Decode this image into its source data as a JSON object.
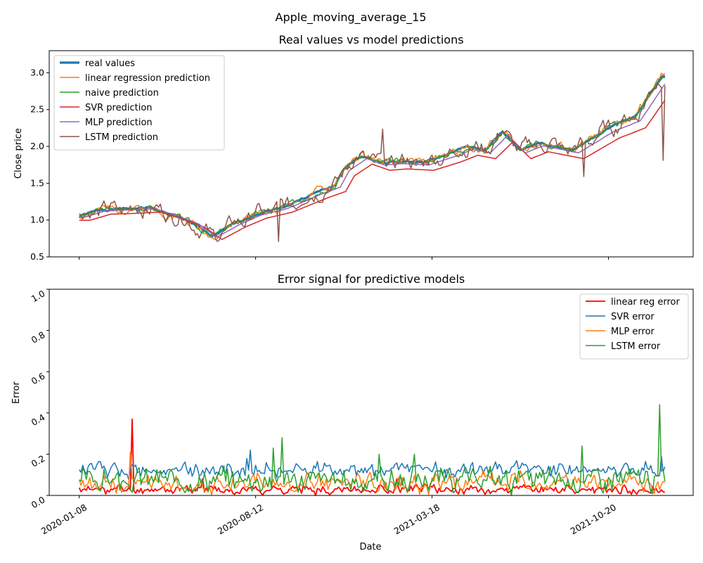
{
  "suptitle": "Apple_moving_average_15",
  "chart_data": [
    {
      "type": "line",
      "title": "Real values vs model predictions",
      "xlabel": "",
      "ylabel": "Close price",
      "ylim": [
        0.5,
        3.3
      ],
      "yticks": [
        0.5,
        1.0,
        1.5,
        2.0,
        2.5,
        3.0
      ],
      "ytick_labels": [
        "0.5",
        "1.0",
        "1.5",
        "2.0",
        "2.5",
        "3.0"
      ],
      "xlim": [
        -17,
        348
      ],
      "xticks": [
        0,
        100,
        200,
        300
      ],
      "xtick_labels": [
        "",
        "",
        "",
        ""
      ],
      "grid": false,
      "legend_position": "upper-left",
      "x_count": 333,
      "base_curve": [
        [
          0,
          1.05
        ],
        [
          12,
          1.14
        ],
        [
          25,
          1.15
        ],
        [
          40,
          1.17
        ],
        [
          55,
          1.05
        ],
        [
          65,
          0.95
        ],
        [
          75,
          0.77
        ],
        [
          88,
          0.95
        ],
        [
          100,
          1.08
        ],
        [
          115,
          1.17
        ],
        [
          135,
          1.38
        ],
        [
          145,
          1.47
        ],
        [
          150,
          1.7
        ],
        [
          160,
          1.87
        ],
        [
          170,
          1.78
        ],
        [
          180,
          1.8
        ],
        [
          195,
          1.78
        ],
        [
          210,
          1.9
        ],
        [
          220,
          2.0
        ],
        [
          230,
          1.95
        ],
        [
          240,
          2.2
        ],
        [
          250,
          1.95
        ],
        [
          260,
          2.05
        ],
        [
          270,
          2.0
        ],
        [
          280,
          1.95
        ],
        [
          300,
          2.25
        ],
        [
          315,
          2.4
        ],
        [
          330,
          2.95
        ],
        [
          333,
          2.98
        ]
      ],
      "series": [
        {
          "name": "real values",
          "color": "#1f77b4",
          "width": 3.2,
          "kind": "real",
          "offset": 0,
          "noise": 0.012,
          "seed": 1
        },
        {
          "name": "linear regression prediction",
          "color": "#ff7f0e",
          "width": 1.5,
          "kind": "real",
          "offset": 0,
          "noise": 0.045,
          "seed": 2
        },
        {
          "name": "naive prediction",
          "color": "#2ca02c",
          "width": 1.5,
          "kind": "real",
          "offset": 0,
          "noise": 0.03,
          "seed": 3
        },
        {
          "name": "SVR prediction",
          "color": "#d62728",
          "width": 1.5,
          "kind": "svr",
          "offset": -0.05,
          "noise": 0,
          "seed": 4
        },
        {
          "name": "MLP prediction",
          "color": "#9467bd",
          "width": 1.5,
          "kind": "mlp",
          "offset": -0.04,
          "noise": 0.005,
          "seed": 5
        },
        {
          "name": "LSTM prediction",
          "color": "#8c564b",
          "width": 1.5,
          "kind": "lstm",
          "offset": 0,
          "noise": 0.05,
          "seed": 6
        }
      ]
    },
    {
      "type": "line",
      "title": "Error signal for predictive models",
      "xlabel": "Date",
      "ylabel": "Error",
      "ylim": [
        0.0,
        1.0
      ],
      "yticks": [
        0.0,
        0.2,
        0.4,
        0.6,
        0.8,
        1.0
      ],
      "ytick_labels": [
        "0.0",
        "0.2",
        "0.4",
        "0.6",
        "0.8",
        "1.0"
      ],
      "xlim": [
        -17,
        348
      ],
      "xticks": [
        0,
        100,
        200,
        300
      ],
      "xtick_labels": [
        "2020-01-08",
        "2020-08-12",
        "2021-03-18",
        "2021-10-20"
      ],
      "grid": false,
      "legend_position": "upper-right",
      "x_count": 333,
      "series": [
        {
          "name": "linear reg error",
          "color": "#ff0000",
          "width": 1.8,
          "base": 0.02,
          "amp": 0.03,
          "seed": 11,
          "spikes": [
            [
              30,
              0.37
            ],
            [
              70,
              0.08
            ],
            [
              180,
              0.08
            ]
          ]
        },
        {
          "name": "SVR error",
          "color": "#1f77b4",
          "width": 1.5,
          "base": 0.11,
          "amp": 0.05,
          "seed": 12,
          "spikes": [
            [
              95,
              0.18
            ],
            [
              97,
              0.22
            ],
            [
              330,
              0.19
            ]
          ]
        },
        {
          "name": "MLP error",
          "color": "#ff7f0e",
          "width": 1.5,
          "base": 0.04,
          "amp": 0.06,
          "seed": 13,
          "spikes": [
            [
              29,
              0.21
            ],
            [
              99,
              0.1
            ],
            [
              250,
              0.12
            ]
          ]
        },
        {
          "name": "LSTM error",
          "color": "#2ca02c",
          "width": 1.5,
          "base": 0.05,
          "amp": 0.08,
          "seed": 14,
          "spikes": [
            [
              110,
              0.23
            ],
            [
              115,
              0.28
            ],
            [
              170,
              0.2
            ],
            [
              190,
              0.2
            ],
            [
              285,
              0.24
            ],
            [
              329,
              0.44
            ]
          ]
        }
      ]
    }
  ]
}
